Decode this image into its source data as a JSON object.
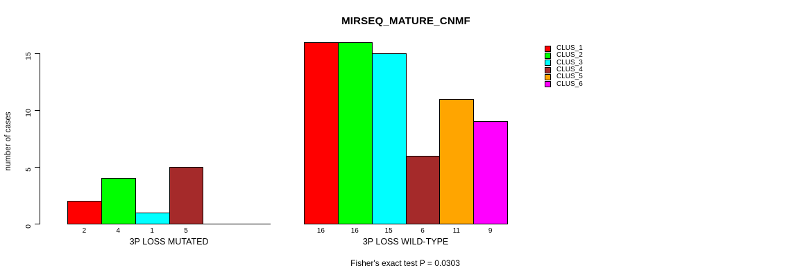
{
  "chart_data": {
    "type": "bar",
    "title": "MIRSEQ_MATURE_CNMF",
    "ylabel": "number of cases",
    "yticks": [
      0,
      5,
      10,
      15
    ],
    "ylim": [
      0,
      16.6
    ],
    "grid": false,
    "legend_position": "right",
    "bar_value_labels_shown": true,
    "zero_value_bars_hidden": true,
    "groups": [
      "3P LOSS MUTATED",
      "3P LOSS WILD-TYPE"
    ],
    "series": [
      {
        "name": "CLUS_1",
        "color": "#ff0000",
        "values": [
          2,
          16
        ]
      },
      {
        "name": "CLUS_2",
        "color": "#00ff00",
        "values": [
          4,
          16
        ]
      },
      {
        "name": "CLUS_3",
        "color": "#00ffff",
        "values": [
          1,
          15
        ]
      },
      {
        "name": "CLUS_4",
        "color": "#a52a2a",
        "values": [
          5,
          6
        ]
      },
      {
        "name": "CLUS_5",
        "color": "#ffa500",
        "values": [
          0,
          11
        ]
      },
      {
        "name": "CLUS_6",
        "color": "#ff00ff",
        "values": [
          0,
          9
        ]
      }
    ],
    "annotation": "Fisher's exact test P = 0.0303"
  }
}
